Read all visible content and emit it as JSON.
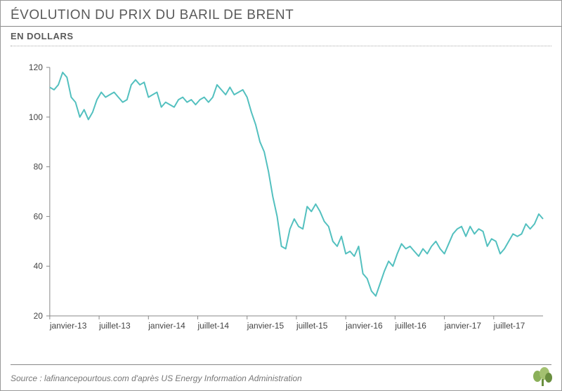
{
  "header": {
    "title": "ÉVOLUTION DU PRIX DU BARIL DE BRENT",
    "subtitle": "EN DOLLARS"
  },
  "footer": {
    "source": "Source : lafinancepourtous.com d'après US Energy Information Administration"
  },
  "chart": {
    "type": "line",
    "background_color": "#ffffff",
    "line_color": "#53c0bf",
    "line_width": 2,
    "axis_color": "#888888",
    "text_color": "#444444",
    "title_color": "#5a5a5a",
    "label_fontsize": 12,
    "title_fontsize": 19,
    "ylim": [
      20,
      120
    ],
    "ytick_step": 20,
    "yticks": [
      20,
      40,
      60,
      80,
      100,
      120
    ],
    "x_categories": [
      "janvier-13",
      "juillet-13",
      "janvier-14",
      "juillet-14",
      "janvier-15",
      "juillet-15",
      "janvier-16",
      "juillet-16",
      "janvier-17",
      "juillet-17"
    ],
    "x_domain": [
      0,
      60
    ],
    "x_tick_positions": [
      0,
      6,
      12,
      18,
      24,
      30,
      36,
      42,
      48,
      54
    ],
    "series": [
      {
        "name": "brent",
        "color": "#53c0bf",
        "values": [
          112,
          111,
          113,
          118,
          116,
          108,
          106,
          100,
          103,
          99,
          102,
          107,
          110,
          108,
          109,
          110,
          108,
          106,
          107,
          113,
          115,
          113,
          114,
          108,
          109,
          110,
          104,
          106,
          105,
          104,
          107,
          108,
          106,
          107,
          105,
          107,
          108,
          106,
          108,
          113,
          111,
          109,
          112,
          109,
          110,
          111,
          108,
          102,
          97,
          90,
          86,
          78,
          68,
          60,
          48,
          47,
          55,
          59,
          56,
          55,
          64,
          62,
          65,
          62,
          58,
          56,
          50,
          48,
          52,
          45,
          46,
          44,
          48,
          37,
          35,
          30,
          28,
          33,
          38,
          42,
          40,
          45,
          49,
          47,
          48,
          46,
          44,
          47,
          45,
          48,
          50,
          47,
          45,
          49,
          53,
          55,
          56,
          52,
          56,
          53,
          55,
          54,
          48,
          51,
          50,
          45,
          47,
          50,
          53,
          52,
          53,
          57,
          55,
          57,
          61,
          59
        ]
      }
    ]
  },
  "logo": {
    "name": "tree-logo",
    "colors": [
      "#8bb05a",
      "#6a8f3f"
    ]
  }
}
